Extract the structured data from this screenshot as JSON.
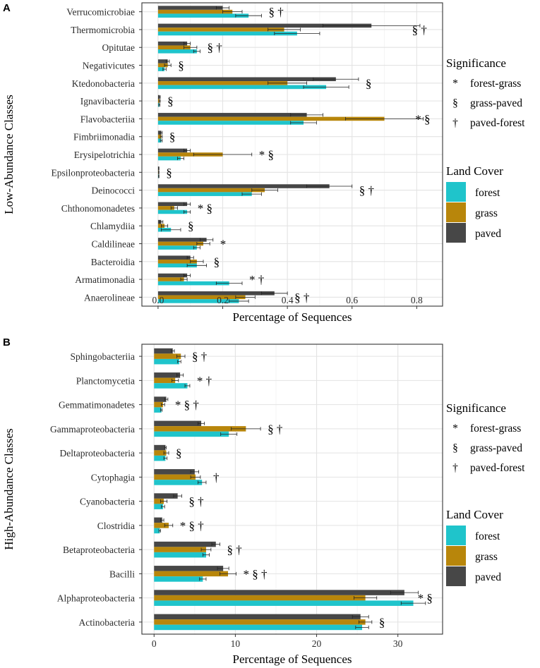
{
  "chart_data": [
    {
      "type": "bar",
      "orientation": "horizontal",
      "panel": "A",
      "ylabel": "Low-Abundance Classes",
      "xlabel": "Percentage of Sequences",
      "xlim": [
        -0.05,
        0.88
      ],
      "xticks": [
        0,
        0.2,
        0.4,
        0.6,
        0.8
      ],
      "xtick_labels": [
        "0.0",
        "0.2",
        "0.4",
        "0.6",
        "0.8"
      ],
      "grid": true,
      "categories": [
        "Verrucomicrobiae",
        "Thermomicrobia",
        "Opitutae",
        "Negativicutes",
        "Ktedonobacteria",
        "Ignavibacteria",
        "Flavobacteriia",
        "Fimbriimonadia",
        "Erysipelotrichia",
        "Epsilonproteobacteria",
        "Deinococci",
        "Chthonomonadetes",
        "Chlamydiia",
        "Caldilineae",
        "Bacteroidia",
        "Armatimonadia",
        "Anaerolineae"
      ],
      "series": [
        {
          "name": "paved",
          "values": [
            0.2,
            0.66,
            0.09,
            0.03,
            0.55,
            0.005,
            0.46,
            0.01,
            0.09,
            0.002,
            0.53,
            0.09,
            0.01,
            0.15,
            0.1,
            0.09,
            0.36
          ],
          "errors": [
            0.02,
            0.15,
            0.01,
            0.005,
            0.07,
            0.002,
            0.05,
            0.003,
            0.01,
            0.001,
            0.07,
            0.01,
            0.005,
            0.02,
            0.01,
            0.01,
            0.04
          ]
        },
        {
          "name": "grass",
          "values": [
            0.23,
            0.39,
            0.1,
            0.03,
            0.4,
            0.005,
            0.7,
            0.01,
            0.2,
            0.002,
            0.33,
            0.05,
            0.02,
            0.14,
            0.12,
            0.08,
            0.27
          ],
          "errors": [
            0.03,
            0.05,
            0.02,
            0.01,
            0.06,
            0.002,
            0.12,
            0.003,
            0.09,
            0.001,
            0.04,
            0.01,
            0.01,
            0.02,
            0.02,
            0.01,
            0.03
          ]
        },
        {
          "name": "forest",
          "values": [
            0.28,
            0.43,
            0.12,
            0.02,
            0.52,
            0.004,
            0.45,
            0.01,
            0.07,
            0.002,
            0.29,
            0.09,
            0.04,
            0.12,
            0.12,
            0.22,
            0.25
          ],
          "errors": [
            0.04,
            0.07,
            0.01,
            0.005,
            0.07,
            0.002,
            0.04,
            0.003,
            0.01,
            0.001,
            0.03,
            0.01,
            0.03,
            0.01,
            0.03,
            0.04,
            0.03
          ]
        }
      ],
      "significance": [
        "§ †",
        "§ †",
        "§ †",
        "§",
        "§",
        "§",
        "* §",
        "§",
        "* §",
        "§",
        "§ †",
        "* §",
        "§",
        "*",
        "§",
        "* †",
        "§ †"
      ]
    },
    {
      "type": "bar",
      "orientation": "horizontal",
      "panel": "B",
      "ylabel": "High-Abundance Classes",
      "xlabel": "Percentage of Sequences",
      "xlim": [
        -1.5,
        35.5
      ],
      "xticks": [
        0,
        10,
        20,
        30
      ],
      "xtick_labels": [
        "0",
        "10",
        "20",
        "30"
      ],
      "grid": true,
      "categories": [
        "Sphingobacteriia",
        "Planctomycetia",
        "Gemmatimonadetes",
        "Gammaproteobacteria",
        "Deltaproteobacteria",
        "Cytophagia",
        "Cyanobacteria",
        "Clostridia",
        "Betaproteobacteria",
        "Bacilli",
        "Alphaproteobacteria",
        "Actinobacteria"
      ],
      "series": [
        {
          "name": "paved",
          "values": [
            2.3,
            3.2,
            1.5,
            5.8,
            1.4,
            5.0,
            2.9,
            1.0,
            7.6,
            8.5,
            30.8,
            25.4
          ],
          "errors": [
            0.2,
            0.4,
            0.2,
            0.4,
            0.1,
            0.5,
            0.5,
            0.2,
            0.5,
            0.7,
            1.7,
            1.0
          ]
        },
        {
          "name": "grass",
          "values": [
            3.3,
            2.6,
            1.1,
            11.3,
            1.5,
            5.1,
            1.2,
            1.8,
            6.4,
            9.1,
            26.0,
            26.0
          ],
          "errors": [
            0.5,
            0.4,
            0.2,
            1.8,
            0.3,
            0.6,
            0.4,
            0.5,
            0.6,
            1.0,
            1.4,
            0.8
          ]
        },
        {
          "name": "forest",
          "values": [
            3.1,
            4.1,
            0.9,
            9.2,
            1.4,
            5.9,
            1.1,
            0.7,
            6.4,
            6.0,
            31.9,
            25.6
          ],
          "errors": [
            0.2,
            0.3,
            0.1,
            1.0,
            0.2,
            0.5,
            0.2,
            0.1,
            0.4,
            0.4,
            1.5,
            0.8
          ]
        }
      ],
      "significance": [
        "§ †",
        "* †",
        "* § †",
        "§ †",
        "§",
        "†",
        "§ †",
        "* § †",
        "§ †",
        "* § †",
        "* §",
        "§"
      ]
    }
  ],
  "panel_labels": [
    "A",
    "B"
  ],
  "legend": {
    "significance_title": "Significance",
    "significance_items": [
      {
        "symbol": "*",
        "label": "forest-grass"
      },
      {
        "symbol": "§",
        "label": "grass-paved"
      },
      {
        "symbol": "†",
        "label": "paved-forest"
      }
    ],
    "landcover_title": "Land Cover",
    "landcover_items": [
      {
        "label": "forest",
        "color": "#1fc4cb"
      },
      {
        "label": "grass",
        "color": "#b8860b"
      },
      {
        "label": "paved",
        "color": "#474747"
      }
    ]
  }
}
